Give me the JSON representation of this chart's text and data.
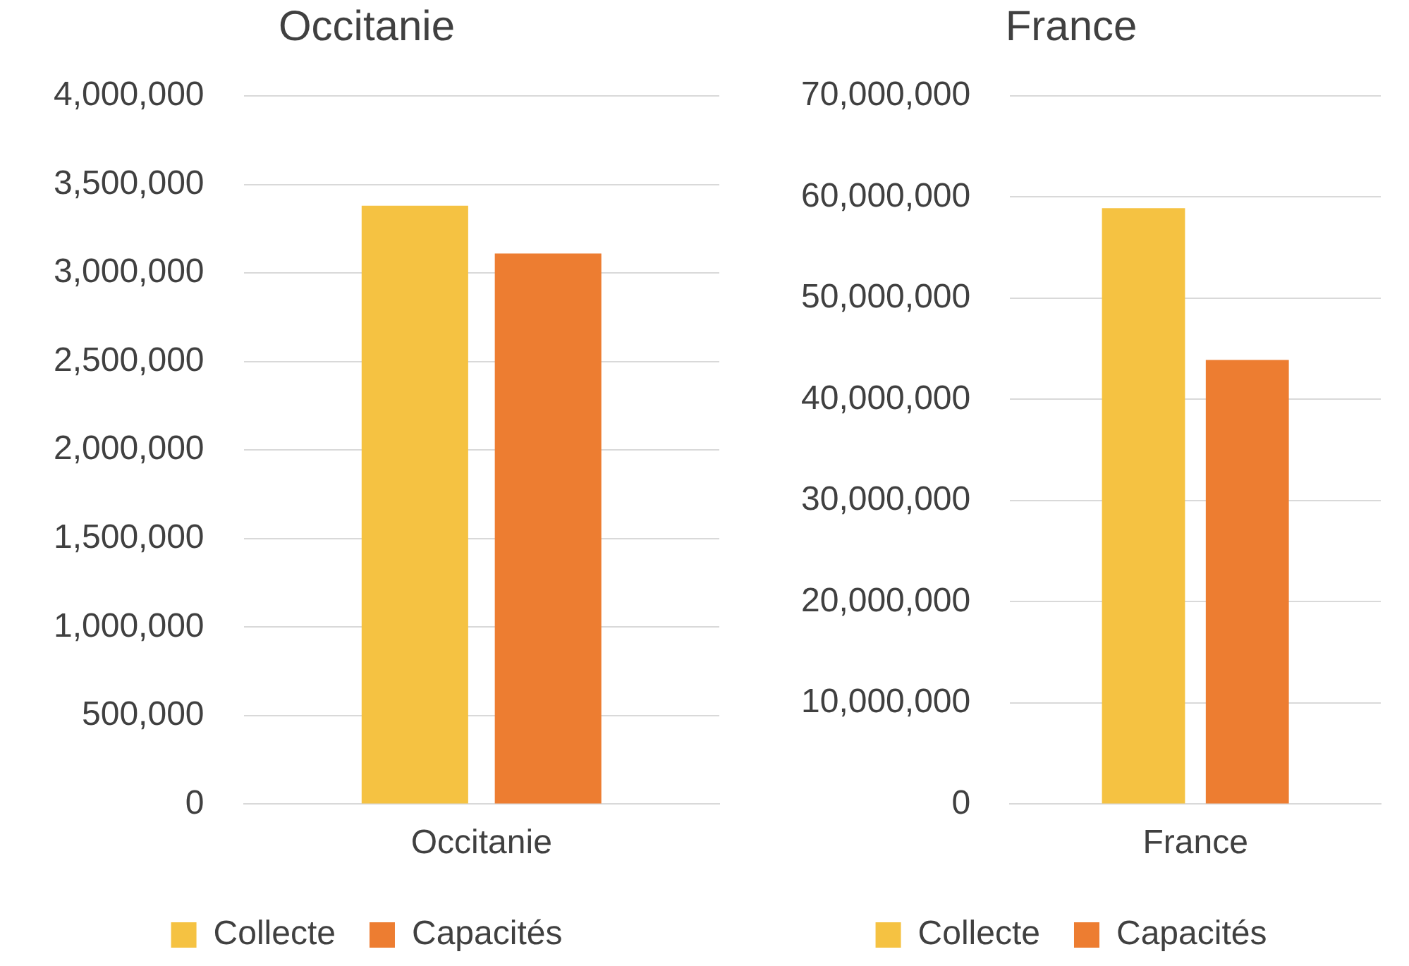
{
  "chart_data": [
    {
      "type": "bar",
      "title": "Occitanie",
      "categories": [
        "Occitanie"
      ],
      "series": [
        {
          "name": "Collecte",
          "color": "#f5c242",
          "values": [
            3380000
          ]
        },
        {
          "name": "Capacités",
          "color": "#ed7d31",
          "values": [
            3110000
          ]
        }
      ],
      "ylim": [
        0,
        4000000
      ],
      "yticks": [
        0,
        {
          "value": 500000,
          "label": "500,000"
        },
        {
          "value": 1000000,
          "label": "1,000,000"
        },
        {
          "value": 1500000,
          "label": "1,500,000"
        },
        {
          "value": 2000000,
          "label": "2,000,000"
        },
        {
          "value": 2500000,
          "label": "2,500,000"
        },
        {
          "value": 3000000,
          "label": "3,000,000"
        },
        {
          "value": 3500000,
          "label": "3,500,000"
        },
        {
          "value": 4000000,
          "label": "4,000,000"
        }
      ],
      "grid": "y",
      "legend": "bottom"
    },
    {
      "type": "bar",
      "title": "France",
      "categories": [
        "France"
      ],
      "series": [
        {
          "name": "Collecte",
          "color": "#f5c242",
          "values": [
            58900000
          ]
        },
        {
          "name": "Capacités",
          "color": "#ed7d31",
          "values": [
            43900000
          ]
        }
      ],
      "ylim": [
        0,
        70000000
      ],
      "yticks": [
        0,
        {
          "value": 10000000,
          "label": "10,000,000"
        },
        {
          "value": 20000000,
          "label": "20,000,000"
        },
        {
          "value": 30000000,
          "label": "30,000,000"
        },
        {
          "value": 40000000,
          "label": "40,000,000"
        },
        {
          "value": 50000000,
          "label": "50,000,000"
        },
        {
          "value": 60000000,
          "label": "60,000,000"
        },
        {
          "value": 70000000,
          "label": "70,000,000"
        }
      ],
      "grid": "y",
      "legend": "bottom"
    }
  ]
}
